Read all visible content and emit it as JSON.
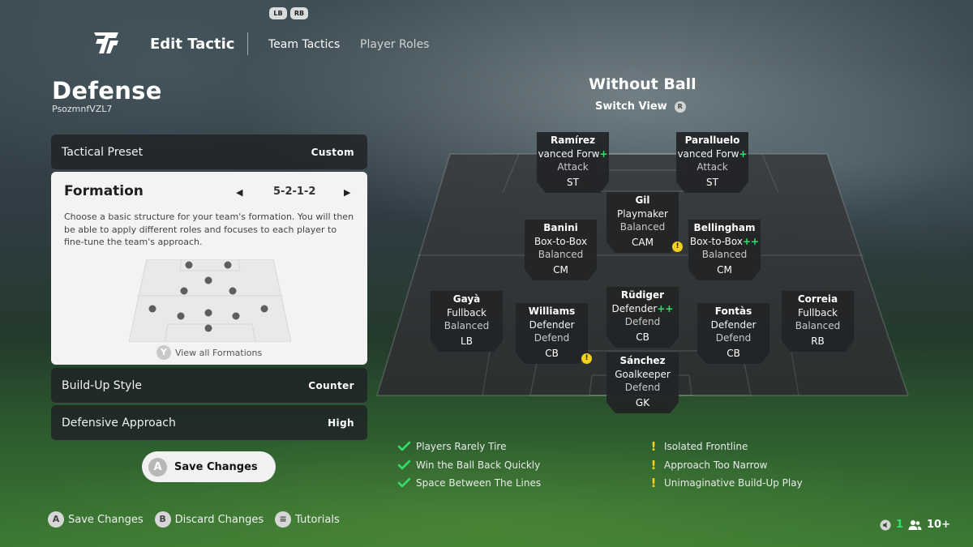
{
  "header": {
    "bumper_left": "LB",
    "bumper_right": "RB",
    "title": "Edit Tactic",
    "tabs": [
      {
        "label": "Team Tactics",
        "active": true
      },
      {
        "label": "Player Roles",
        "active": false
      }
    ]
  },
  "left": {
    "title": "Defense",
    "subtitle": "PsozmnfVZL7",
    "tactical_preset": {
      "label": "Tactical Preset",
      "value": "Custom"
    },
    "formation": {
      "label": "Formation",
      "value": "5-2-1-2",
      "description": "Choose a basic structure for your team's formation. You will then be able to apply different roles and focuses to each player to fine-tune the team's approach.",
      "view_all_button": "Y",
      "view_all_label": "View all Formations"
    },
    "build_up_style": {
      "label": "Build-Up Style",
      "value": "Counter"
    },
    "defensive_approach": {
      "label": "Defensive Approach",
      "value": "High"
    },
    "save_button": {
      "key": "A",
      "label": "Save Changes"
    }
  },
  "pitch_view": {
    "title": "Without Ball",
    "switch_view_label": "Switch View",
    "switch_view_key": "R",
    "players": [
      {
        "name": "Ramírez",
        "role": "vanced Forw",
        "plus": "+",
        "focus": "Attack",
        "position": "ST"
      },
      {
        "name": "Paralluelo",
        "role": "vanced Forw",
        "plus": "+",
        "focus": "Attack",
        "position": "ST"
      },
      {
        "name": "Gil",
        "role": "Playmaker",
        "plus": "",
        "focus": "Balanced",
        "position": "CAM",
        "warning": true
      },
      {
        "name": "Banini",
        "role": "Box-to-Box",
        "plus": "",
        "focus": "Balanced",
        "position": "CM"
      },
      {
        "name": "Bellingham",
        "role": "Box-to-Box",
        "plus": "++",
        "focus": "Balanced",
        "position": "CM"
      },
      {
        "name": "Rüdiger",
        "role": "Defender",
        "plus": "++",
        "focus": "Defend",
        "position": "CB"
      },
      {
        "name": "Gayà",
        "role": "Fullback",
        "plus": "",
        "focus": "Balanced",
        "position": "LB"
      },
      {
        "name": "Williams",
        "role": "Defender",
        "plus": "",
        "focus": "Defend",
        "position": "CB",
        "warning": true
      },
      {
        "name": "Fontàs",
        "role": "Defender",
        "plus": "",
        "focus": "Defend",
        "position": "CB"
      },
      {
        "name": "Correia",
        "role": "Fullback",
        "plus": "",
        "focus": "Balanced",
        "position": "RB"
      },
      {
        "name": "Sánchez",
        "role": "Goalkeeper",
        "plus": "",
        "focus": "Defend",
        "position": "GK"
      }
    ],
    "strengths": [
      "Players Rarely Tire",
      "Win the Ball Back Quickly",
      "Space Between The Lines"
    ],
    "weaknesses": [
      "Isolated Frontline",
      "Approach Too Narrow",
      "Unimaginative Build-Up Play"
    ],
    "accent_positive": "#2fe36a",
    "accent_warning": "#f2d01c"
  },
  "footer": {
    "items": [
      {
        "key": "A",
        "label": "Save Changes"
      },
      {
        "key": "B",
        "label": "Discard Changes"
      },
      {
        "key": "≡",
        "label": "Tutorials"
      }
    ],
    "count_value": "1",
    "party_value": "10+"
  }
}
